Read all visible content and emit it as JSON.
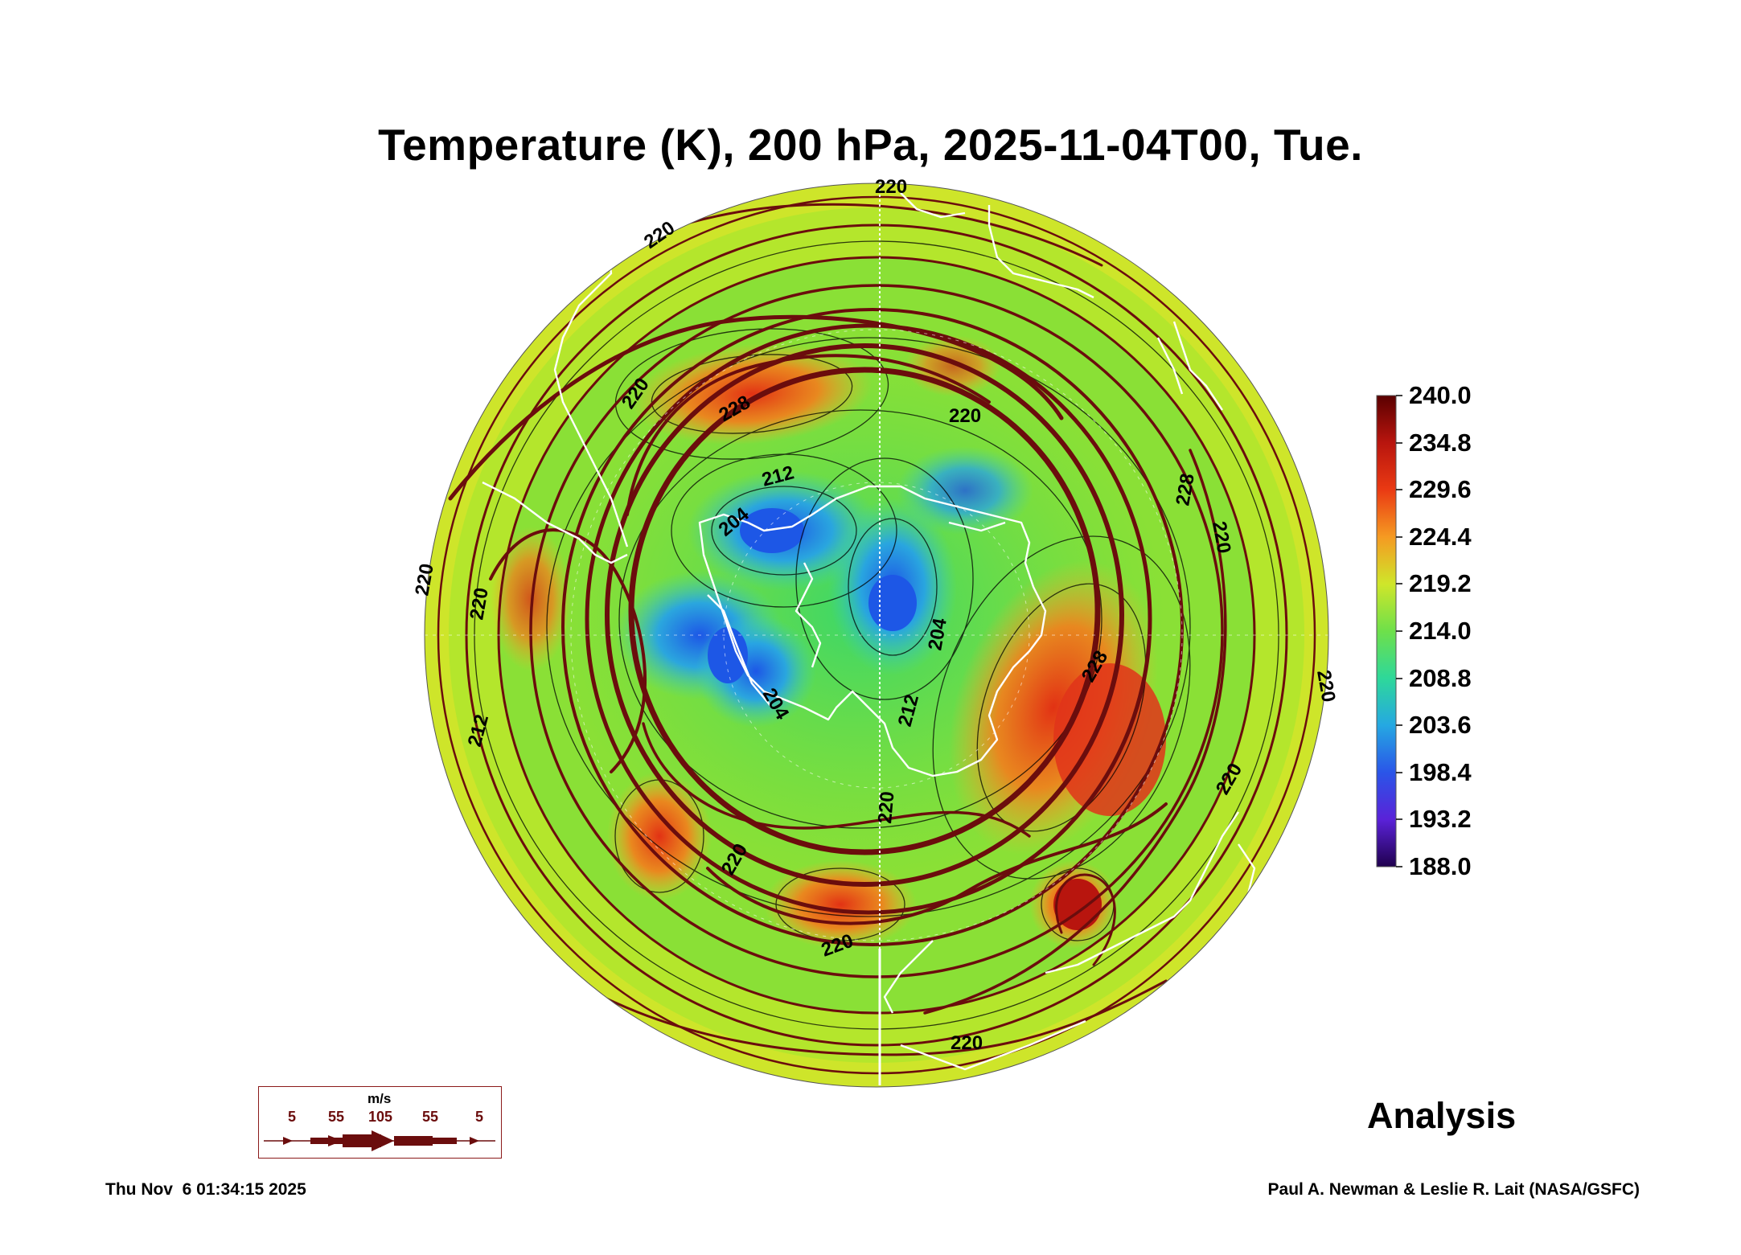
{
  "title": "Temperature (K), 200 hPa, 2025-11-04T00, Tue.",
  "colorbar": {
    "labels": [
      "240.0",
      "234.8",
      "229.6",
      "224.4",
      "219.2",
      "214.0",
      "208.8",
      "203.6",
      "198.4",
      "193.2",
      "188.0"
    ],
    "min": 188.0,
    "max": 240.0
  },
  "contour_labels": [
    "220",
    "220",
    "220",
    "228",
    "220",
    "212",
    "204",
    "204",
    "220",
    "228",
    "220",
    "204",
    "212",
    "228",
    "220",
    "212",
    "220",
    "220",
    "220",
    "220",
    "220",
    "220"
  ],
  "wind_legend": {
    "unit": "m/s",
    "ticks": [
      "5",
      "55",
      "105",
      "55",
      "5"
    ]
  },
  "analysis_label": "Analysis",
  "timestamp": "Thu Nov  6 01:34:15 2025",
  "credit": "Paul A. Newman & Leslie R. Lait (NASA/GSFC)",
  "colors": {
    "streamline": "#6b0d0d",
    "coastline": "#ffffff",
    "warm": "#e8401a",
    "cold": "#1e6ee0",
    "mid": "#6ee04a"
  }
}
